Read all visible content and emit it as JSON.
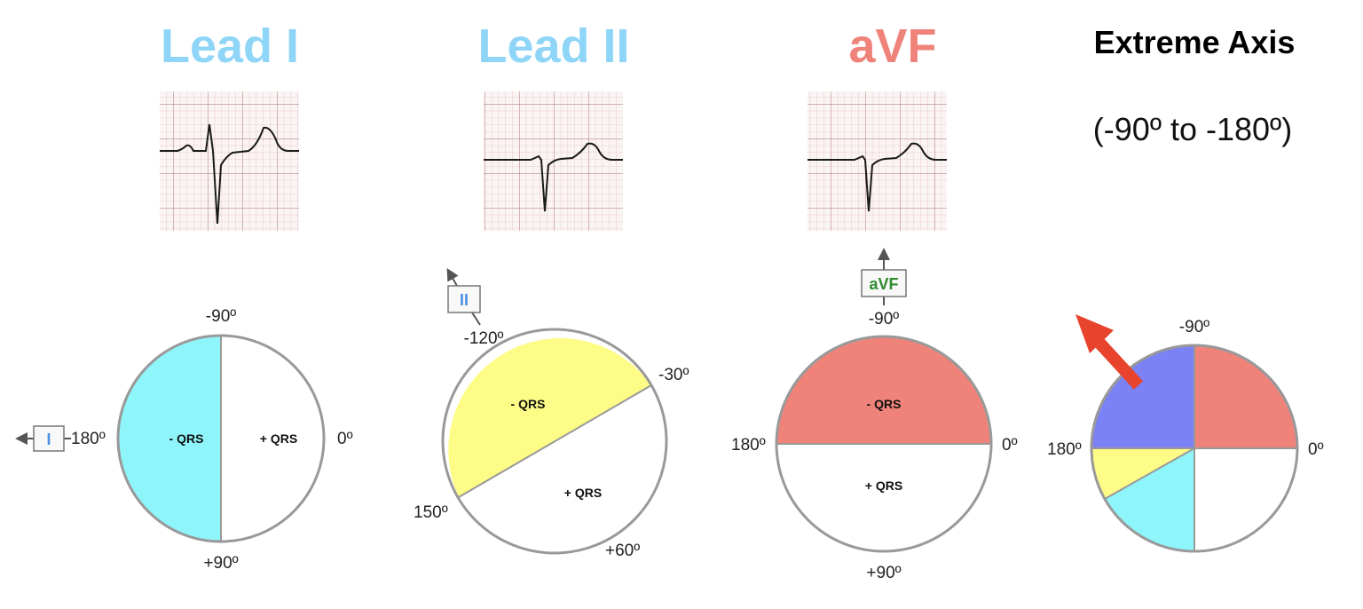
{
  "panels": [
    {
      "title": "Lead I",
      "title_color": "#8fd5f7",
      "lead_box": "I",
      "lead_color": "#4a90e2",
      "fill_color": "#8ef5fb",
      "neg_label": "- QRS",
      "pos_label": "+ QRS",
      "angles": [
        "-90º",
        "180º",
        "0º",
        "+90º"
      ]
    },
    {
      "title": "Lead II",
      "title_color": "#8fd5f7",
      "lead_box": "II",
      "lead_color": "#4a90e2",
      "fill_color": "#fdfc86",
      "neg_label": "- QRS",
      "pos_label": "+ QRS",
      "angles": [
        "-120º",
        "-30º",
        "150º",
        "+60º"
      ]
    },
    {
      "title": "aVF",
      "title_color": "#ef837a",
      "lead_box": "aVF",
      "lead_color": "#2e8b2e",
      "fill_color": "#ef837a",
      "neg_label": "- QRS",
      "pos_label": "+ QRS",
      "angles": [
        "-90º",
        "180º",
        "0º",
        "+90º"
      ]
    },
    {
      "title": "Extreme Axis",
      "title_color": "#000000",
      "range": "(-90º to -180º)",
      "angles": [
        "-90º",
        "180º",
        "0º"
      ],
      "colors": {
        "upper_left": "#7b82f5",
        "upper_right": "#ef837a",
        "lower_left_yellow": "#fdfc86",
        "lower_left_cyan": "#8ef5fb",
        "arrow": "#e8432c"
      }
    }
  ]
}
